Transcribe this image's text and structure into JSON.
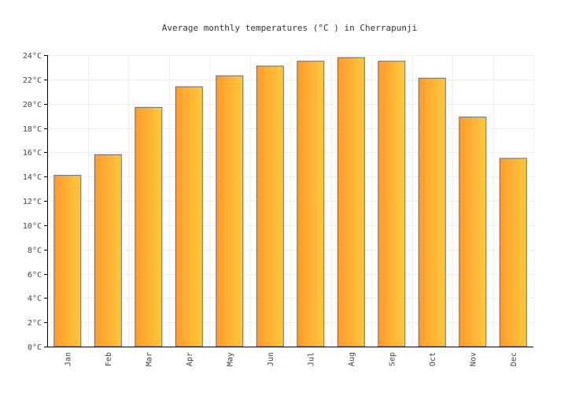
{
  "chart_data": {
    "type": "bar",
    "title": "Average monthly temperatures (°C ) in Cherrapunji",
    "xlabel": "",
    "ylabel": "",
    "categories": [
      "Jan",
      "Feb",
      "Mar",
      "Apr",
      "May",
      "Jun",
      "Jul",
      "Aug",
      "Sep",
      "Oct",
      "Nov",
      "Dec"
    ],
    "values": [
      14.1,
      15.8,
      19.7,
      21.4,
      22.3,
      23.1,
      23.5,
      23.8,
      23.5,
      22.1,
      18.9,
      15.5
    ],
    "ylim": [
      0,
      24
    ],
    "yticks": [
      "0°C",
      "2°C",
      "4°C",
      "6°C",
      "8°C",
      "10°C",
      "12°C",
      "14°C",
      "16°C",
      "18°C",
      "20°C",
      "22°C",
      "24°C"
    ],
    "grid": true,
    "legend": "none",
    "bar_colors": [
      "#ff9a2e",
      "#ffc93a"
    ]
  }
}
